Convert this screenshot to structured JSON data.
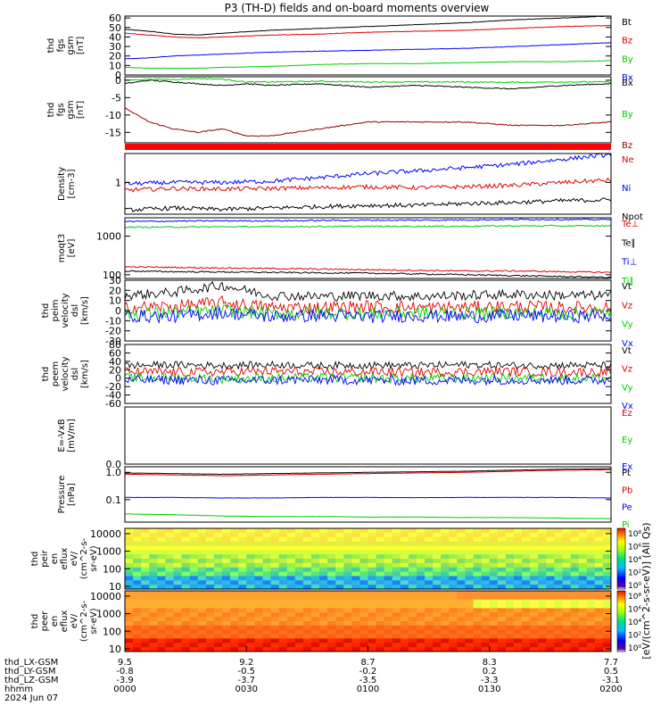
{
  "title": "P3 (TH-D) fields and on-board moments overview",
  "chart_data": [
    {
      "type": "line",
      "ylabel": [
        "thd",
        "fgs",
        "gsm",
        "[nT]"
      ],
      "ylim": [
        0,
        62
      ],
      "yticks": [
        0,
        10,
        20,
        30,
        40,
        50,
        60
      ],
      "x": [
        0,
        0.05,
        0.1,
        0.15,
        0.2,
        0.3,
        0.4,
        0.5,
        0.6,
        0.7,
        0.8,
        0.9,
        1.0
      ],
      "series": [
        {
          "name": "Bt",
          "color": "#000000",
          "values": [
            48,
            46,
            43,
            42,
            44,
            47,
            49,
            51,
            53,
            55,
            58,
            60,
            62
          ]
        },
        {
          "name": "Bz",
          "color": "#e00000",
          "values": [
            44,
            42,
            40,
            39,
            40,
            42,
            43,
            45,
            46,
            47,
            49,
            51,
            52
          ]
        },
        {
          "name": "By",
          "color": "#00cc00",
          "values": [
            8,
            7,
            7,
            7,
            8,
            9,
            11,
            12,
            12,
            13,
            14,
            14,
            15
          ]
        },
        {
          "name": "Bx",
          "color": "#0000ff",
          "values": [
            17,
            18,
            20,
            21,
            22,
            24,
            25,
            26,
            27,
            28,
            30,
            32,
            34
          ]
        }
      ]
    },
    {
      "type": "line",
      "ylabel": [
        "thd",
        "fgs",
        "gsm",
        "[nT]"
      ],
      "ylim": [
        -18,
        1
      ],
      "yticks": [
        -15,
        -10,
        -5,
        0
      ],
      "x": [
        0,
        0.05,
        0.1,
        0.15,
        0.2,
        0.25,
        0.3,
        0.4,
        0.5,
        0.6,
        0.7,
        0.8,
        0.9,
        1.0
      ],
      "series": [
        {
          "name": "Bx",
          "color": "#000000",
          "values": [
            -1,
            0,
            -0.5,
            -1,
            -1.5,
            -1,
            -1.5,
            -1,
            -2,
            -1.5,
            -2,
            -2.5,
            -1.5,
            -1
          ]
        },
        {
          "name": "By",
          "color": "#00cc00",
          "values": [
            0,
            0.3,
            0.2,
            0.5,
            0.3,
            -0.5,
            -0.5,
            -0.3,
            -0.5,
            -0.5,
            -0.5,
            -0.6,
            -0.5,
            -0.5
          ]
        },
        {
          "name": "Bz",
          "color": "#990000",
          "values": [
            -8,
            -12,
            -14,
            -15,
            -14,
            -16,
            -16,
            -14,
            -12,
            -12,
            -12,
            -13,
            -13,
            -12
          ]
        }
      ]
    },
    {
      "type": "line",
      "ylabel": [
        "Density",
        "[cm-3]"
      ],
      "ylog": true,
      "ylim": [
        0.3,
        3
      ],
      "yticks": [
        1
      ],
      "x": [
        0,
        0.1,
        0.2,
        0.3,
        0.4,
        0.5,
        0.6,
        0.7,
        0.8,
        0.9,
        1.0
      ],
      "series": [
        {
          "name": "Ne",
          "color": "#e00000",
          "values": [
            0.75,
            0.8,
            0.78,
            0.8,
            0.82,
            0.85,
            0.82,
            0.85,
            0.9,
            1.0,
            1.1
          ]
        },
        {
          "name": "Ni",
          "color": "#0000ff",
          "values": [
            0.95,
            1.0,
            1.0,
            1.05,
            1.2,
            1.4,
            1.55,
            1.75,
            2.0,
            2.4,
            2.9
          ]
        },
        {
          "name": "Npot",
          "color": "#000000",
          "values": [
            0.35,
            0.38,
            0.36,
            0.38,
            0.4,
            0.42,
            0.42,
            0.45,
            0.47,
            0.5,
            0.52
          ]
        }
      ]
    },
    {
      "type": "line",
      "ylabel": [
        "moqt3",
        "[eV]"
      ],
      "ylog": true,
      "ylim": [
        80,
        3000
      ],
      "yticks": [
        100,
        1000
      ],
      "x": [
        0,
        0.1,
        0.2,
        0.3,
        0.4,
        0.5,
        0.6,
        0.7,
        0.8,
        0.9,
        1.0
      ],
      "series": [
        {
          "name": "Te⊥",
          "color": "#e00000",
          "values": [
            160,
            155,
            150,
            145,
            140,
            135,
            130,
            125,
            125,
            120,
            115
          ]
        },
        {
          "name": "Te∥",
          "color": "#000000",
          "values": [
            125,
            120,
            118,
            115,
            112,
            110,
            105,
            100,
            95,
            90,
            85
          ]
        },
        {
          "name": "Ti⊥",
          "color": "#0000ff",
          "values": [
            2400,
            2450,
            2500,
            2500,
            2550,
            2600,
            2600,
            2650,
            2700,
            2700,
            2700
          ]
        },
        {
          "name": "Ti∥",
          "color": "#00cc00",
          "values": [
            1700,
            1720,
            1750,
            1760,
            1780,
            1800,
            1800,
            1820,
            1850,
            1850,
            1850
          ]
        }
      ]
    },
    {
      "type": "line",
      "ylabel": [
        "thd",
        "peim",
        "velocity",
        "dsl",
        "[km/s]"
      ],
      "ylim": [
        -30,
        30
      ],
      "yticks": [
        -30,
        -20,
        -10,
        0,
        10,
        20,
        30
      ],
      "x": [
        0,
        0.1,
        0.2,
        0.3,
        0.4,
        0.5,
        0.6,
        0.7,
        0.8,
        0.9,
        1.0
      ],
      "series": [
        {
          "name": "Vt",
          "color": "#000000",
          "values": [
            15,
            18,
            25,
            15,
            14,
            15,
            14,
            15,
            16,
            15,
            15
          ]
        },
        {
          "name": "Vz",
          "color": "#e00000",
          "values": [
            3,
            4,
            8,
            3,
            3,
            4,
            3,
            3,
            4,
            3,
            3
          ]
        },
        {
          "name": "Vy",
          "color": "#00cc00",
          "values": [
            -3,
            -2,
            0,
            -3,
            -2,
            -3,
            -2,
            -3,
            -2,
            -3,
            -2
          ]
        },
        {
          "name": "Vx",
          "color": "#0000ff",
          "values": [
            -5,
            -6,
            -2,
            -6,
            -5,
            -6,
            -5,
            -6,
            -5,
            -6,
            -5
          ]
        }
      ]
    },
    {
      "type": "line",
      "ylabel": [
        "thd",
        "peem",
        "velocity",
        "dsl",
        "[km/s]"
      ],
      "ylim": [
        -60,
        80
      ],
      "yticks": [
        -60,
        -40,
        -20,
        0,
        20,
        40,
        60,
        80
      ],
      "x": [
        0,
        0.1,
        0.2,
        0.3,
        0.4,
        0.5,
        0.6,
        0.7,
        0.8,
        0.9,
        1.0
      ],
      "series": [
        {
          "name": "Vt",
          "color": "#000000",
          "values": [
            30,
            32,
            30,
            32,
            30,
            31,
            30,
            32,
            30,
            31,
            30
          ]
        },
        {
          "name": "Vz",
          "color": "#e00000",
          "values": [
            15,
            14,
            15,
            16,
            14,
            15,
            14,
            15,
            16,
            14,
            15
          ]
        },
        {
          "name": "Vy",
          "color": "#00cc00",
          "values": [
            0,
            1,
            -1,
            0,
            1,
            0,
            -1,
            0,
            1,
            0,
            0
          ]
        },
        {
          "name": "Vx",
          "color": "#0000ff",
          "values": [
            -5,
            -4,
            -6,
            -5,
            -4,
            -5,
            -6,
            -5,
            -4,
            -5,
            -5
          ]
        }
      ]
    },
    {
      "type": "line",
      "ylabel": [
        "E=-VxB",
        "[mV/m]"
      ],
      "ylim": [
        0,
        1
      ],
      "yticks": [
        0.0
      ],
      "series": [
        {
          "name": "Ez",
          "color": "#e00000",
          "values": []
        },
        {
          "name": "Ey",
          "color": "#00cc00",
          "values": []
        },
        {
          "name": "Ex",
          "color": "#0000ff",
          "values": []
        }
      ]
    },
    {
      "type": "line",
      "ylabel": [
        "Pressure",
        "[nPa]"
      ],
      "ylog": true,
      "ylim": [
        0.015,
        1.6
      ],
      "yticks": [
        0.1,
        1.0
      ],
      "x": [
        0,
        0.1,
        0.2,
        0.3,
        0.4,
        0.5,
        0.6,
        0.7,
        0.8,
        0.9,
        1.0
      ],
      "series": [
        {
          "name": "Pt",
          "color": "#000000",
          "values": [
            0.95,
            0.9,
            0.85,
            0.9,
            0.95,
            1.0,
            1.05,
            1.1,
            1.2,
            1.3,
            1.35
          ]
        },
        {
          "name": "Pb",
          "color": "#e00000",
          "values": [
            0.85,
            0.8,
            0.75,
            0.8,
            0.85,
            0.9,
            0.95,
            1.0,
            1.1,
            1.2,
            1.25
          ]
        },
        {
          "name": "Pe",
          "color": "#0000ff",
          "values": [
            0.12,
            0.12,
            0.115,
            0.115,
            0.12,
            0.12,
            0.118,
            0.12,
            0.12,
            0.12,
            0.115
          ]
        },
        {
          "name": "Pi",
          "color": "#00cc00",
          "values": [
            0.03,
            0.028,
            0.025,
            0.024,
            0.024,
            0.023,
            0.023,
            0.022,
            0.022,
            0.021,
            0.02
          ]
        }
      ]
    },
    {
      "type": "heatmap",
      "ylabel": [
        "thd",
        "peir",
        "en",
        "eflux",
        "eV/",
        "(cm^2-s-",
        "sr-eV)"
      ],
      "ylog": true,
      "ylim": [
        7,
        20000
      ],
      "yticks": [
        10,
        100,
        1000,
        10000
      ]
    },
    {
      "type": "heatmap",
      "ylabel": [
        "thd",
        "peer",
        "en",
        "eflux",
        "eV/",
        "(cm^2-s-",
        "sr-eV)"
      ],
      "ylog": true,
      "ylim": [
        7,
        20000
      ],
      "yticks": [
        10,
        100,
        1000,
        10000
      ]
    }
  ],
  "colorbar": {
    "label": "[eV/(cm^2-s-sr-eV)] (All Qs)",
    "ticks": [
      "10⁸",
      "10⁶",
      "10⁴",
      "10²",
      "10⁰"
    ],
    "ticks2": [
      "10⁸",
      "10⁶",
      "10⁴",
      "10²",
      "10⁰"
    ]
  },
  "x_axis": {
    "rows": [
      {
        "label": "thd_LX-GSM",
        "values": [
          "9.5",
          "9.2",
          "8.7",
          "8.3",
          "7.7"
        ]
      },
      {
        "label": "thd_LY-GSM",
        "values": [
          "-0.8",
          "-0.5",
          "-0.2",
          "0.2",
          "0.5"
        ]
      },
      {
        "label": "thd_LZ-GSM",
        "values": [
          "-3.9",
          "-3.7",
          "-3.5",
          "-3.3",
          "-3.1"
        ]
      },
      {
        "label": "hhmm",
        "values": [
          "0000",
          "0030",
          "0100",
          "0130",
          "0200"
        ]
      }
    ],
    "date": "2024 Jun 07"
  }
}
